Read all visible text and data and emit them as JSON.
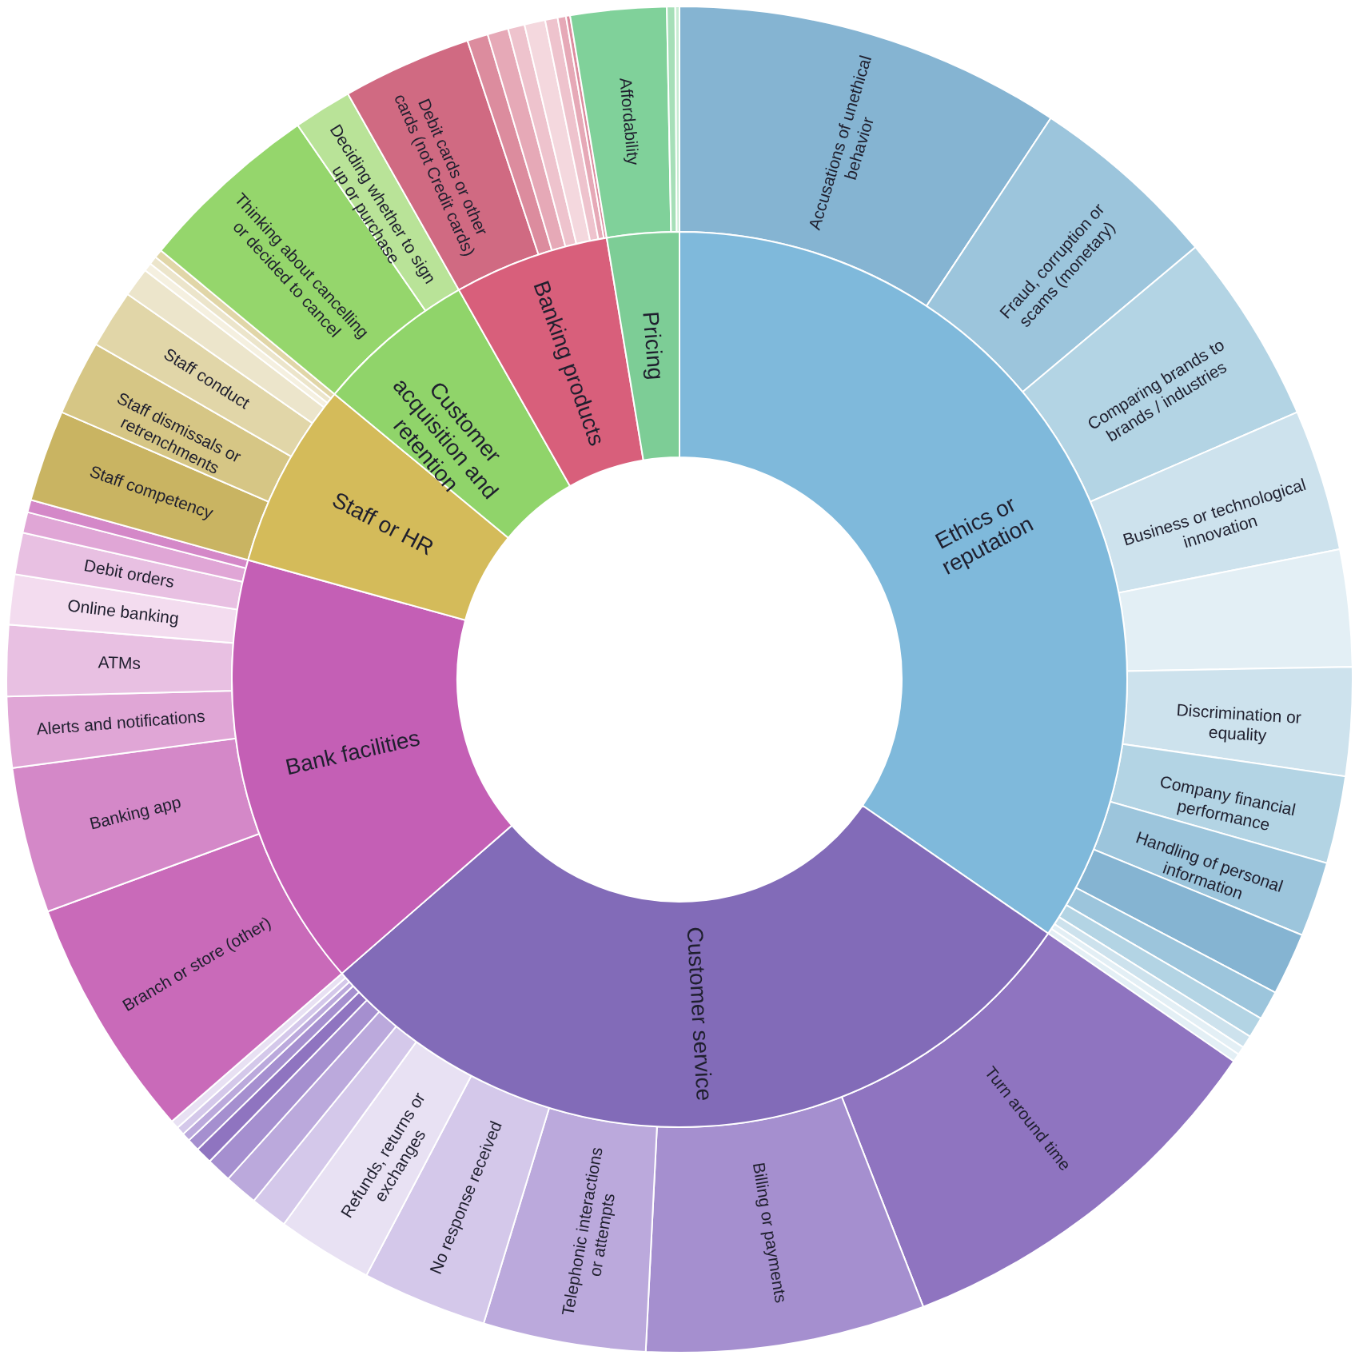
{
  "chart_data": [
    {
      "type": "donut",
      "categories": [
        "Ethics or reputation",
        "Customer service",
        "Bank facilities",
        "Staff or HR",
        "Customer acquisition and retention",
        "Banking products",
        "Pricing"
      ],
      "values": [
        34.6,
        29.0,
        15.7,
        6.7,
        5.8,
        5.6,
        2.6
      ],
      "colors": [
        "#7fb9db",
        "#826bb8",
        "#c45fb5",
        "#d4bb5a",
        "#90d46a",
        "#d85f7b",
        "#7dcd96"
      ]
    },
    {
      "type": "donut",
      "categories": [
        "Accusations of unethical behavior",
        "Fraud, corruption or scams (monetary)",
        "Comparing brands to brands / industries",
        "Business or technological innovation",
        null,
        "Discrimination or equality",
        "Company financial performance",
        "Handling of personal information",
        null,
        null,
        null,
        null,
        null,
        null,
        "Turn around time",
        "Billing or payments",
        "Telephonic interactions or attempts",
        "No response received",
        "Refunds, returns or exchanges",
        null,
        null,
        null,
        null,
        null,
        null,
        null,
        null,
        "Branch or store (other)",
        "Banking app",
        "Alerts and notifications",
        "ATMs",
        "Online banking",
        "Debit orders",
        null,
        null,
        "Staff competency",
        "Staff dismissals or retrenchments",
        "Staff conduct",
        null,
        null,
        null,
        null,
        "Thinking about cancelling or decided to cancel",
        "Deciding whether to sign up or purchase",
        "Debit cards or other cards (not Credit cards)",
        null,
        null,
        null,
        null,
        null,
        null,
        null,
        "Affordability",
        null,
        null
      ],
      "values": [
        9.3,
        4.6,
        4.6,
        3.4,
        2.8,
        2.6,
        2.1,
        1.8,
        1.5,
        0.7,
        0.5,
        0.3,
        0.2,
        0.2,
        9.5,
        6.7,
        3.9,
        3.0,
        2.3,
        0.9,
        0.8,
        0.6,
        0.4,
        0.3,
        0.2,
        0.2,
        0.2,
        5.8,
        3.5,
        1.7,
        1.7,
        1.2,
        1.0,
        0.5,
        0.3,
        2.2,
        1.8,
        1.4,
        0.7,
        0.2,
        0.2,
        0.2,
        4.4,
        1.4,
        3.1,
        0.5,
        0.5,
        0.4,
        0.5,
        0.3,
        0.2,
        0.1,
        2.3,
        0.2,
        0.1
      ],
      "colors": [
        "#85b4d2",
        "#9cc5dc",
        "#b3d4e4",
        "#cde2ed",
        "#e3eff5",
        "#cde2ed",
        "#b3d4e4",
        "#9cc5dc",
        "#85b4d2",
        "#9cc5dc",
        "#b3d4e4",
        "#cde2ed",
        "#e3eff5",
        "#e3eff5",
        "#8f74c0",
        "#a58fcf",
        "#bba9dc",
        "#d4c8ea",
        "#e8e1f3",
        "#d4c8ea",
        "#bba9dc",
        "#a58fcf",
        "#8f74c0",
        "#a58fcf",
        "#bba9dc",
        "#d4c8ea",
        "#e8e1f3",
        "#c96ab9",
        "#d488c8",
        "#e0a6d6",
        "#e8c0e2",
        "#f3dcef",
        "#e8c0e2",
        "#e0a6d6",
        "#d488c8",
        "#c9b462",
        "#d6c685",
        "#e1d6a8",
        "#ece5cb",
        "#f5f0e0",
        "#ece5cb",
        "#e1d6a8",
        "#95d66c",
        "#b9e398",
        "#d06a82",
        "#dc8c9e",
        "#e6a9b7",
        "#eec3cd",
        "#f4d8de",
        "#eec3cd",
        "#e6a9b7",
        "#dc8c9e",
        "#80d19a",
        "#a6dfb8",
        "#c8ecd3"
      ]
    }
  ]
}
